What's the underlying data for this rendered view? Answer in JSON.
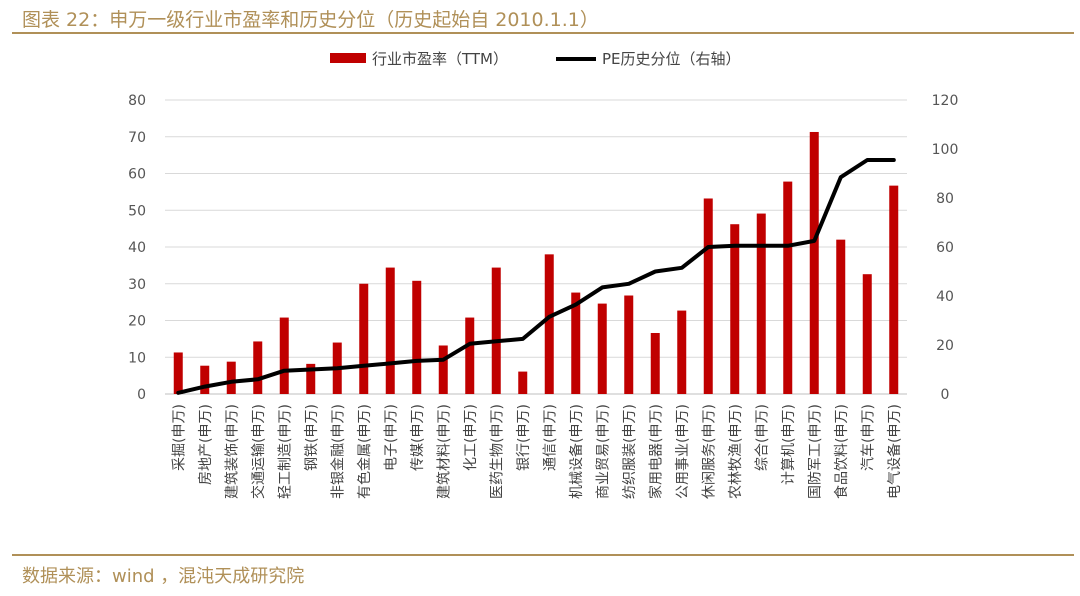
{
  "header": {
    "title": "图表 22：申万一级行业市盈率和历史分位（历史起始自 2010.1.1）"
  },
  "footer": {
    "source": "数据来源：wind ，混沌天成研究院"
  },
  "colors": {
    "bar": "#c00000",
    "line": "#000000",
    "accent": "#b09058",
    "grid": "#d9d9d9"
  },
  "chart_data": {
    "type": "bar",
    "title": "申万一级行业市盈率和历史分位（历史起始自 2010.1.1）",
    "categories": [
      "采掘(申万)",
      "房地产(申万)",
      "建筑装饰(申万)",
      "交通运输(申万)",
      "轻工制造(申万)",
      "钢铁(申万)",
      "非银金融(申万)",
      "有色金属(申万)",
      "电子(申万)",
      "传媒(申万)",
      "建筑材料(申万)",
      "化工(申万)",
      "医药生物(申万)",
      "银行(申万)",
      "通信(申万)",
      "机械设备(申万)",
      "商业贸易(申万)",
      "纺织服装(申万)",
      "家用电器(申万)",
      "公用事业(申万)",
      "休闲服务(申万)",
      "农林牧渔(申万)",
      "综合(申万)",
      "计算机(申万)",
      "国防军工(申万)",
      "食品饮料(申万)",
      "汽车(申万)",
      "电气设备(申万)"
    ],
    "series": [
      {
        "name": "行业市盈率（TTM）",
        "type": "bar",
        "axis": "left",
        "values": [
          11.3,
          7.7,
          8.8,
          14.3,
          20.8,
          8.2,
          14.0,
          30.0,
          34.4,
          30.8,
          13.2,
          20.8,
          34.4,
          6.1,
          38.0,
          27.6,
          24.6,
          26.8,
          16.6,
          22.7,
          53.2,
          46.2,
          49.1,
          57.8,
          71.3,
          42.0,
          32.6,
          56.7
        ]
      },
      {
        "name": "PE历史分位（右轴）",
        "type": "line",
        "axis": "right",
        "values": [
          0.5,
          3.0,
          5.0,
          6.0,
          9.5,
          10.0,
          10.5,
          11.5,
          12.5,
          13.5,
          14.0,
          20.5,
          21.5,
          22.5,
          31.5,
          36.5,
          43.5,
          45.0,
          50.0,
          51.5,
          60.0,
          60.5,
          60.5,
          60.5,
          62.5,
          88.5,
          95.5,
          95.5
        ]
      }
    ],
    "left_axis": {
      "min": 0,
      "max": 80,
      "ticks": [
        "0",
        "10",
        "20",
        "30",
        "40",
        "50",
        "60",
        "70",
        "80"
      ]
    },
    "right_axis": {
      "min": 0,
      "max": 120,
      "ticks": [
        "0",
        "20",
        "40",
        "60",
        "80",
        "100",
        "120"
      ]
    },
    "grid": true,
    "legend_position": "top-center"
  }
}
